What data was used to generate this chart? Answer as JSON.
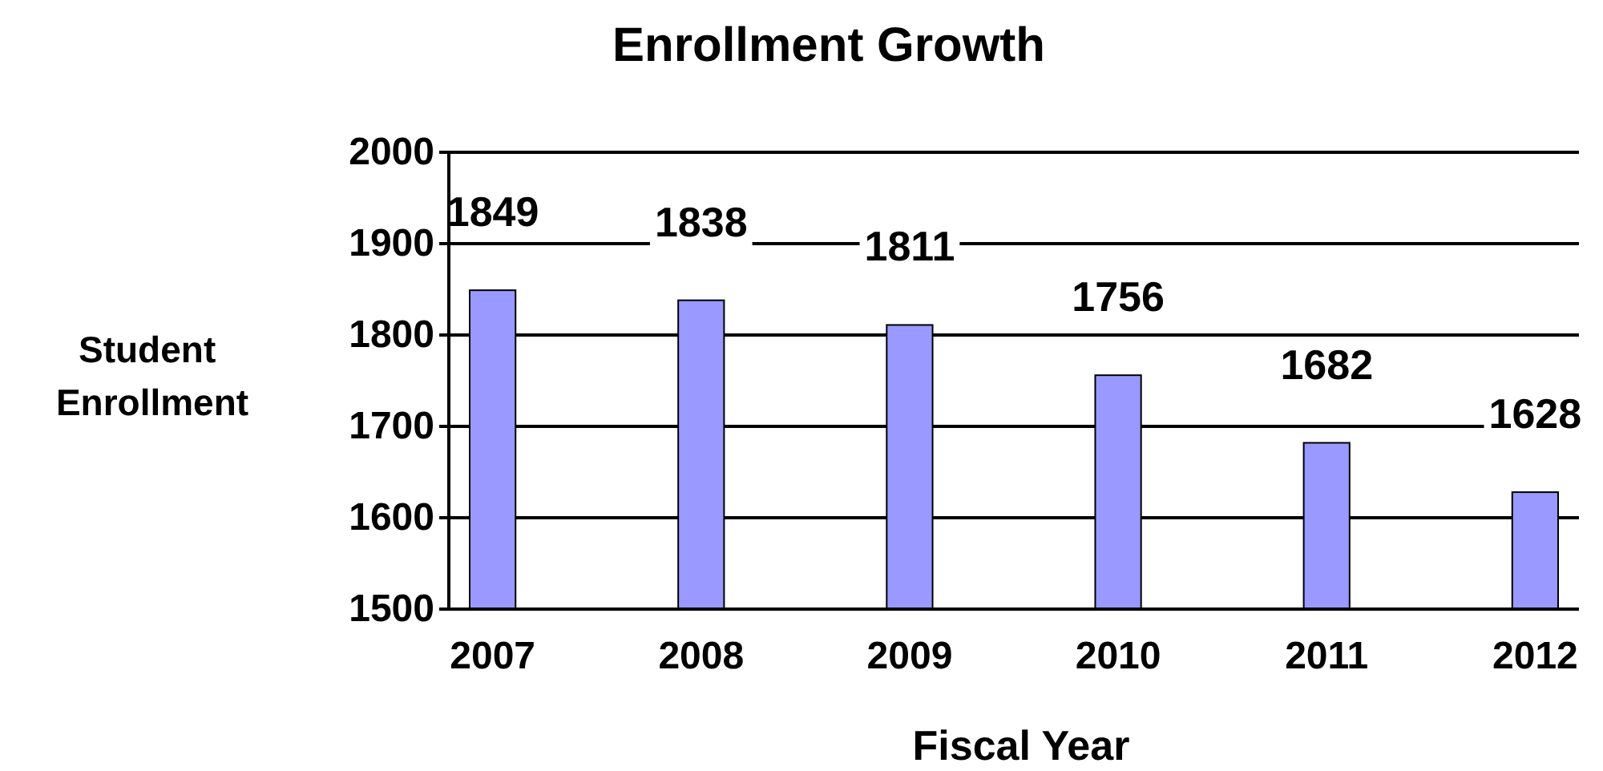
{
  "chart_data": {
    "type": "bar",
    "title": "Enrollment Growth",
    "xlabel": "Fiscal Year",
    "ylabel": "Student Enrollment",
    "categories": [
      "2007",
      "2008",
      "2009",
      "2010",
      "2011",
      "2012"
    ],
    "values": [
      1849,
      1838,
      1811,
      1756,
      1682,
      1628
    ],
    "color": "#9999ff",
    "ylim": [
      1500,
      2000
    ],
    "yticks": [
      1500,
      1600,
      1700,
      1800,
      1900,
      2000
    ],
    "grid": "y",
    "data_labels": true
  }
}
